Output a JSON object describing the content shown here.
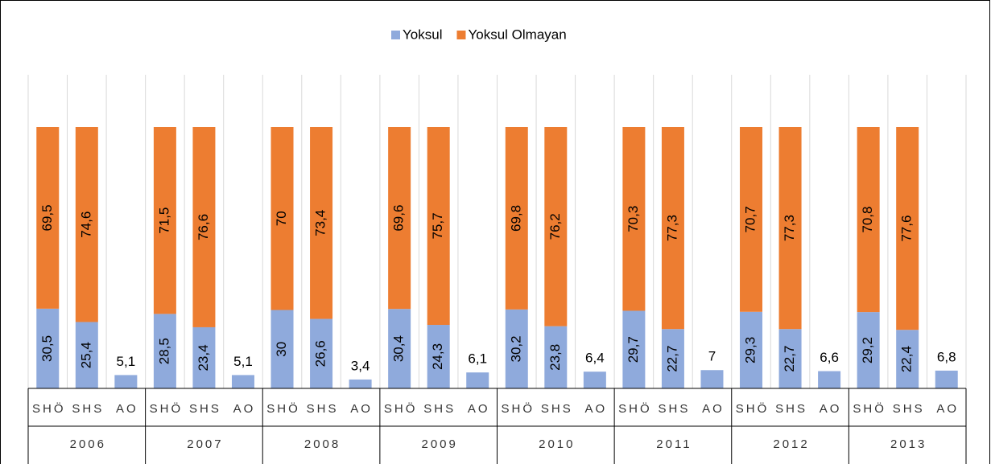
{
  "chart_data": {
    "type": "stacked_bar",
    "categories": [
      "SHÖ",
      "SHS",
      "AO",
      "SHÖ",
      "SHS",
      "AO",
      "SHÖ",
      "SHS",
      "AO",
      "SHÖ",
      "SHS",
      "AO",
      "SHÖ",
      "SHS",
      "AO",
      "SHÖ",
      "SHS",
      "AO",
      "SHÖ",
      "SHS",
      "AO",
      "SHÖ",
      "SHS",
      "AO"
    ],
    "groups": [
      "2006",
      "2007",
      "2008",
      "2009",
      "2010",
      "2011",
      "2012",
      "2013"
    ],
    "series": [
      {
        "name": "Yoksul",
        "color": "#8faadc",
        "values": [
          30.5,
          25.4,
          5.1,
          28.5,
          23.4,
          5.1,
          30,
          26.6,
          3.4,
          30.4,
          24.3,
          6.1,
          30.2,
          23.8,
          6.4,
          29.7,
          22.7,
          7,
          29.3,
          22.7,
          6.6,
          29.2,
          22.4,
          6.8
        ],
        "value_labels": [
          "30,5",
          "25,4",
          "5,1",
          "28,5",
          "23,4",
          "5,1",
          "30",
          "26,6",
          "3,4",
          "30,4",
          "24,3",
          "6,1",
          "30,2",
          "23,8",
          "6,4",
          "29,7",
          "22,7",
          "7",
          "29,3",
          "22,7",
          "6,6",
          "29,2",
          "22,4",
          "6,8"
        ]
      },
      {
        "name": "Yoksul Olmayan",
        "color": "#ed7d31",
        "values": [
          69.5,
          74.6,
          null,
          71.5,
          76.6,
          null,
          70,
          73.4,
          null,
          69.6,
          75.7,
          null,
          69.8,
          76.2,
          null,
          70.3,
          77.3,
          null,
          70.7,
          77.3,
          null,
          70.8,
          77.6,
          null
        ],
        "value_labels": [
          "69,5",
          "74,6",
          null,
          "71,5",
          "76,6",
          null,
          "70",
          "73,4",
          null,
          "69,6",
          "75,7",
          null,
          "69,8",
          "76,2",
          null,
          "70,3",
          "77,3",
          null,
          "70,7",
          "77,3",
          null,
          "70,8",
          "77,6",
          null
        ]
      }
    ],
    "ylim": [
      0,
      120
    ],
    "legend": "top"
  }
}
